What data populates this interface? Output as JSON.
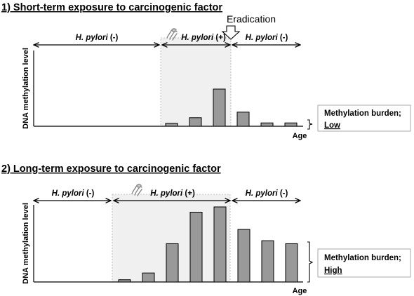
{
  "colors": {
    "shade": "#f0f0f0",
    "bar": "#999999",
    "burden_border": "#aaaaaa"
  },
  "panels": [
    {
      "title": "1) Short-term exposure to carcinogenic factor",
      "y_label": "DNA methylation level",
      "x_label": "Age",
      "eradication_label": "Eradication",
      "periods": [
        {
          "species": "H. pylori",
          "status": " (-)"
        },
        {
          "species": "H. pylori",
          "status": " (+)"
        },
        {
          "species": "H. pylori",
          "status": " (-)"
        }
      ],
      "bar_values": [
        0.08,
        0.23,
        1.0,
        0.38,
        0.09,
        0.09
      ],
      "burden_line1": "Methylation burden;",
      "burden_line2": "Low",
      "icon": "h-pylori-bacterium-icon"
    },
    {
      "title": "2) Long-term exposure to carcinogenic factor",
      "y_label": "DNA methylation level",
      "x_label": "Age",
      "periods": [
        {
          "species": "H. pylori",
          "status": " (-)"
        },
        {
          "species": "H. pylori",
          "status": " (+)"
        },
        {
          "species": "H. pylori",
          "status": " (-)"
        }
      ],
      "bar_values": [
        0.03,
        0.12,
        0.51,
        0.93,
        1.0,
        0.7,
        0.55,
        0.51
      ],
      "burden_line1": "Methylation burden;",
      "burden_line2": "High",
      "icon": "h-pylori-bacterium-icon"
    }
  ]
}
